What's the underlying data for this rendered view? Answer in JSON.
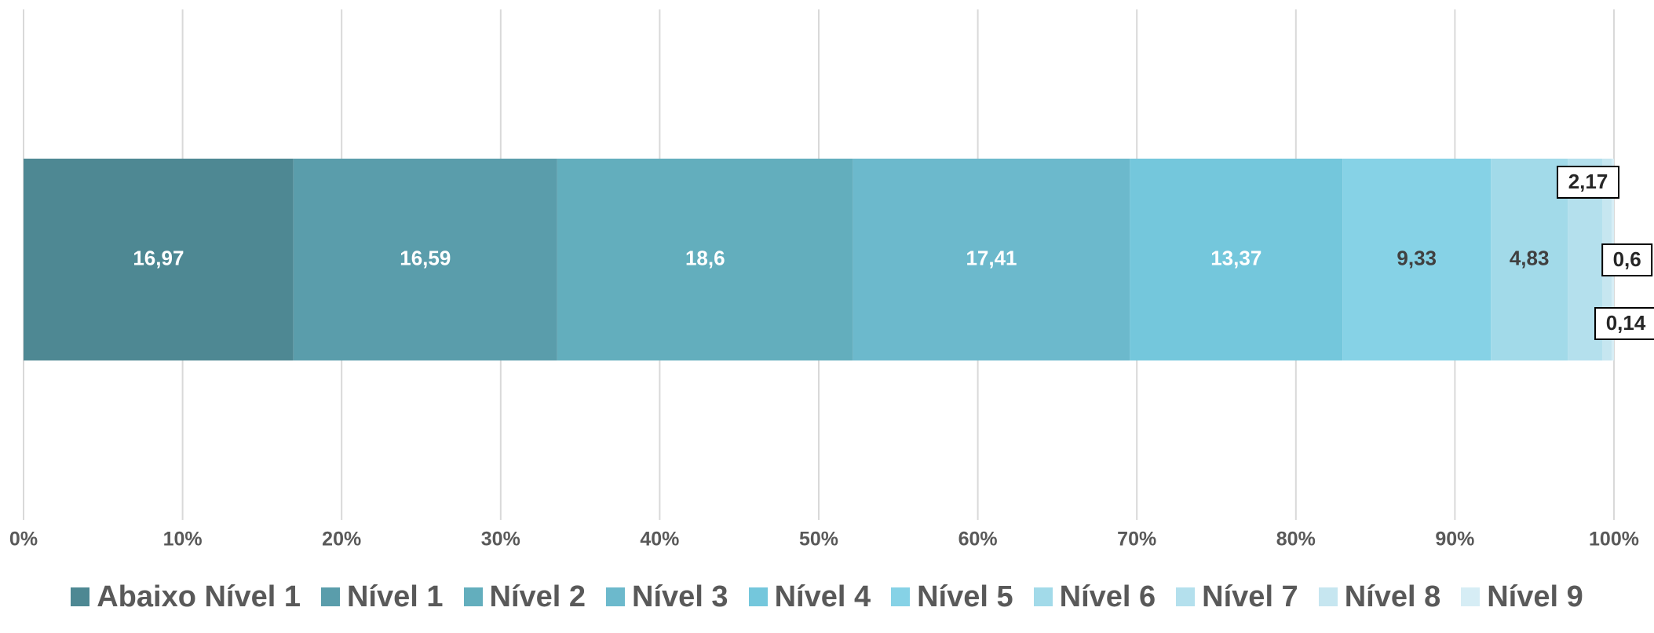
{
  "chart_data": {
    "type": "bar",
    "orientation": "horizontal",
    "stacked": "100%",
    "title": "",
    "xlabel": "",
    "ylabel": "",
    "xlim": [
      0,
      100
    ],
    "x_ticks": [
      "0%",
      "10%",
      "20%",
      "30%",
      "40%",
      "50%",
      "60%",
      "70%",
      "80%",
      "90%",
      "100%"
    ],
    "grid": "vertical",
    "legend_position": "bottom",
    "series": [
      {
        "name": "Abaixo Nível 1",
        "value": 16.97,
        "label": "16,97",
        "color": "#4e8893",
        "label_color": "#ffffff",
        "label_style": "inside"
      },
      {
        "name": "Nível 1",
        "value": 16.59,
        "label": "16,59",
        "color": "#5a9dab",
        "label_color": "#ffffff",
        "label_style": "inside"
      },
      {
        "name": "Nível 2",
        "value": 18.6,
        "label": "18,6",
        "color": "#63aebd",
        "label_color": "#ffffff",
        "label_style": "inside"
      },
      {
        "name": "Nível 3",
        "value": 17.41,
        "label": "17,41",
        "color": "#6cb9cc",
        "label_color": "#ffffff",
        "label_style": "inside"
      },
      {
        "name": "Nível 4",
        "value": 13.37,
        "label": "13,37",
        "color": "#74c7dc",
        "label_color": "#ffffff",
        "label_style": "inside"
      },
      {
        "name": "Nível 5",
        "value": 9.33,
        "label": "9,33",
        "color": "#86d2e6",
        "label_color": "#404040",
        "label_style": "inside"
      },
      {
        "name": "Nível 6",
        "value": 4.83,
        "label": "4,83",
        "color": "#a2dae9",
        "label_color": "#404040",
        "label_style": "inside"
      },
      {
        "name": "Nível 7",
        "value": 2.17,
        "label": "2,17",
        "color": "#b4e0ed",
        "label_color": "#262626",
        "label_style": "callout-above"
      },
      {
        "name": "Nível 8",
        "value": 0.6,
        "label": "0,6",
        "color": "#c6e6f0",
        "label_color": "#262626",
        "label_style": "callout-right"
      },
      {
        "name": "Nível 9",
        "value": 0.14,
        "label": "0,14",
        "color": "#d6edf5",
        "label_color": "#262626",
        "label_style": "callout-below"
      }
    ]
  }
}
